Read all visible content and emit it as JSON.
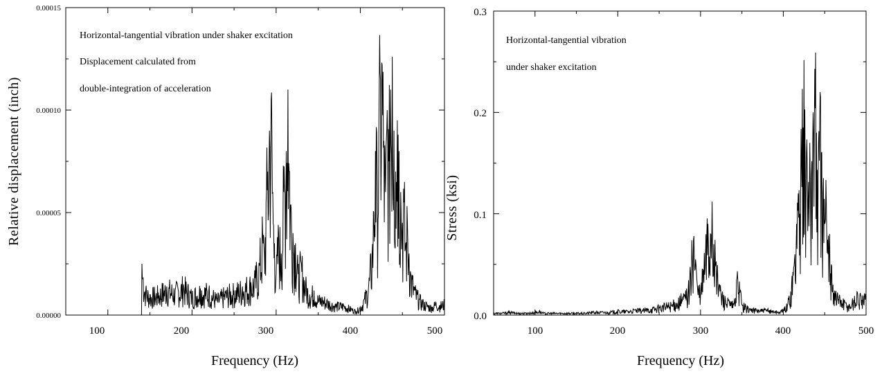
{
  "chart_data": [
    {
      "type": "line",
      "title": "",
      "xlabel": "Frequency (Hz)",
      "ylabel": "Relative displacement (inch)",
      "xlim": [
        50,
        500
      ],
      "ylim": [
        0,
        0.00015
      ],
      "x_ticks": [
        "100",
        "200",
        "300",
        "400",
        "500"
      ],
      "x_tick_values": [
        100,
        200,
        300,
        400,
        500
      ],
      "y_ticks": [
        "0.00000",
        "0.00005",
        "0.00010",
        "0.00015"
      ],
      "y_tick_values": [
        0,
        5e-05,
        0.0001,
        0.00015
      ],
      "annotations": [
        "Horizontal-tangential vibration under shaker excitation",
        "Displacement calculated from",
        "double-integration of acceleration"
      ],
      "grid": false,
      "line_color": "#000000",
      "series": [
        {
          "x": [
            50,
            140,
            140.5,
            142,
            145,
            150,
            160,
            170,
            180,
            190,
            200,
            210,
            220,
            230,
            240,
            250,
            260,
            270,
            275,
            280,
            284,
            286,
            288,
            290,
            292,
            294,
            296,
            298,
            300,
            303,
            306,
            309,
            312,
            314,
            316,
            318,
            320,
            323,
            326,
            330,
            335,
            340,
            345,
            350,
            355,
            360,
            370,
            380,
            390,
            395,
            400,
            405,
            410,
            414,
            416,
            418,
            420,
            422,
            424,
            426,
            428,
            430,
            432,
            434,
            436,
            438,
            440,
            442,
            444,
            446,
            448,
            450,
            452,
            454,
            456,
            458,
            460,
            465,
            470,
            475,
            480,
            485,
            490,
            495,
            500
          ],
          "y": [
            0,
            0,
            2.5e-05,
            1.8e-05,
            1.2e-05,
            1e-05,
            1.1e-05,
            1.4e-05,
            1.2e-05,
            1.5e-05,
            1e-05,
            1.3e-05,
            1.2e-05,
            8e-06,
            1.1e-05,
            1.2e-05,
            1.4e-05,
            1.6e-05,
            1.8e-05,
            2.5e-05,
            4e-05,
            3e-05,
            5.5e-05,
            7e-05,
            9e-05,
            0.000105,
            6e-05,
            3.5e-05,
            2e-05,
            4e-05,
            3e-05,
            6e-05,
            8e-05,
            0.00011,
            7e-05,
            5e-05,
            4e-05,
            3.5e-05,
            2e-05,
            2.5e-05,
            1.5e-05,
            1e-05,
            1.2e-05,
            8e-06,
            8e-06,
            7e-06,
            5e-06,
            5e-06,
            3e-06,
            2e-06,
            4e-06,
            8e-06,
            1.5e-05,
            3e-05,
            5e-05,
            8e-05,
            6.5e-05,
            9e-05,
            0.000115,
            0.000122,
            8.5e-05,
            6e-05,
            0.0001,
            7.5e-05,
            0.00011,
            0.000126,
            9e-05,
            7e-05,
            9.5e-05,
            8e-05,
            6e-05,
            4.5e-05,
            5.5e-05,
            3.5e-05,
            4.5e-05,
            3e-05,
            2e-05,
            1.2e-05,
            8e-06,
            6e-06,
            5e-06,
            4e-06,
            6e-06,
            5e-06,
            6e-06
          ]
        }
      ]
    },
    {
      "type": "line",
      "title": "",
      "xlabel": "Frequency (Hz)",
      "ylabel": "Stress (ksi)",
      "xlim": [
        50,
        500
      ],
      "ylim": [
        0,
        0.3
      ],
      "x_ticks": [
        "100",
        "200",
        "300",
        "400",
        "500"
      ],
      "x_tick_values": [
        100,
        200,
        300,
        400,
        500
      ],
      "y_ticks": [
        "0.0",
        "0.1",
        "0.2",
        "0.3"
      ],
      "y_tick_values": [
        0,
        0.1,
        0.2,
        0.3
      ],
      "annotations": [
        "Horizontal-tangential vibration",
        "under shaker excitation"
      ],
      "grid": false,
      "line_color": "#000000",
      "series": [
        {
          "x": [
            50,
            60,
            70,
            80,
            90,
            100,
            105,
            110,
            120,
            130,
            140,
            150,
            160,
            170,
            180,
            190,
            200,
            210,
            220,
            230,
            240,
            250,
            260,
            270,
            280,
            285,
            288,
            290,
            292,
            294,
            296,
            298,
            300,
            303,
            306,
            309,
            312,
            314,
            316,
            318,
            320,
            323,
            326,
            330,
            335,
            340,
            345,
            348,
            350,
            355,
            360,
            370,
            380,
            390,
            395,
            400,
            405,
            410,
            414,
            416,
            418,
            420,
            422,
            424,
            426,
            428,
            430,
            432,
            434,
            436,
            438,
            440,
            442,
            444,
            446,
            448,
            450,
            452,
            454,
            456,
            458,
            460,
            465,
            470,
            475,
            480,
            485,
            490,
            495,
            500
          ],
          "y": [
            0.002,
            0.002,
            0.003,
            0.002,
            0.002,
            0.003,
            0.004,
            0.002,
            0.002,
            0.002,
            0.002,
            0.002,
            0.002,
            0.003,
            0.003,
            0.003,
            0.004,
            0.004,
            0.005,
            0.005,
            0.006,
            0.008,
            0.01,
            0.012,
            0.018,
            0.025,
            0.04,
            0.06,
            0.078,
            0.055,
            0.03,
            0.025,
            0.02,
            0.045,
            0.06,
            0.09,
            0.08,
            0.112,
            0.07,
            0.05,
            0.04,
            0.03,
            0.02,
            0.015,
            0.012,
            0.01,
            0.035,
            0.025,
            0.01,
            0.008,
            0.006,
            0.005,
            0.005,
            0.004,
            0.003,
            0.005,
            0.01,
            0.03,
            0.06,
            0.09,
            0.12,
            0.1,
            0.15,
            0.185,
            0.203,
            0.16,
            0.11,
            0.17,
            0.14,
            0.2,
            0.243,
            0.18,
            0.13,
            0.188,
            0.16,
            0.12,
            0.09,
            0.11,
            0.06,
            0.08,
            0.05,
            0.03,
            0.02,
            0.015,
            0.012,
            0.01,
            0.015,
            0.02,
            0.015,
            0.018
          ]
        }
      ]
    }
  ]
}
